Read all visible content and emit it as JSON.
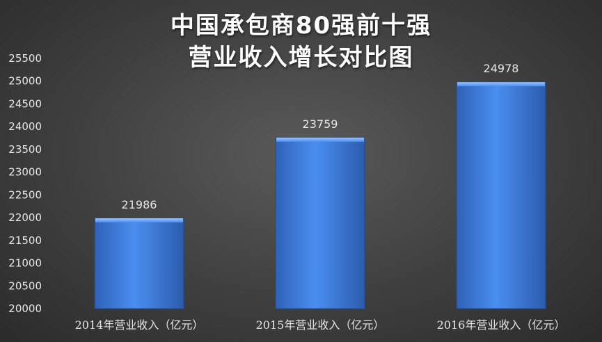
{
  "chart_data": {
    "type": "bar",
    "title_lines": [
      "中国承包商80强前十强",
      "营业收入增长对比图"
    ],
    "categories": [
      "2014年营业收入（亿元）",
      "2015年营业收入（亿元）",
      "2016年营业收入（亿元）"
    ],
    "values": [
      21986,
      23759,
      24978
    ],
    "data_labels": [
      "21986",
      "23759",
      "24978"
    ],
    "ylim": [
      20000,
      25500
    ],
    "yticks": [
      20000,
      20500,
      21000,
      21500,
      22000,
      22500,
      23000,
      23500,
      24000,
      24500,
      25000,
      25500
    ],
    "grid": false,
    "bar_color": "#3f7fe0"
  }
}
